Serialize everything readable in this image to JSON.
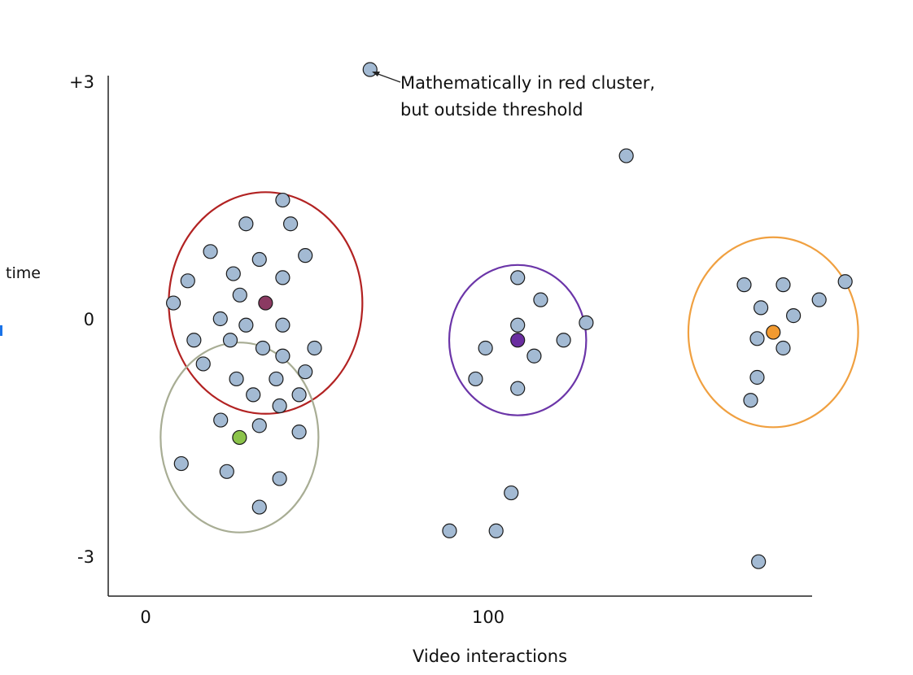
{
  "chart_data": {
    "type": "scatter",
    "title": "",
    "xlabel": "Video interactions",
    "ylabel": "time",
    "xlim": [
      -11,
      196
    ],
    "ylim": [
      -3.5,
      3.05
    ],
    "x_ticks": [
      {
        "value": 0,
        "label": "0"
      },
      {
        "value": 100,
        "label": "100"
      }
    ],
    "y_ticks": [
      {
        "value": 3,
        "label": "+3"
      },
      {
        "value": 0,
        "label": "0"
      },
      {
        "value": -3,
        "label": "-3"
      }
    ],
    "grid": false,
    "point_color": "#a3bad3",
    "points": [
      [
        65.5,
        3.15
      ],
      [
        140.3,
        2.06
      ],
      [
        40.0,
        1.5
      ],
      [
        29.3,
        1.2
      ],
      [
        42.3,
        1.2
      ],
      [
        18.9,
        0.85
      ],
      [
        46.6,
        0.8
      ],
      [
        33.2,
        0.75
      ],
      [
        25.6,
        0.57
      ],
      [
        12.3,
        0.48
      ],
      [
        40.0,
        0.52
      ],
      [
        27.5,
        0.3
      ],
      [
        8.1,
        0.2
      ],
      [
        21.8,
        0.0
      ],
      [
        29.3,
        -0.08
      ],
      [
        40.0,
        -0.08
      ],
      [
        14.1,
        -0.27
      ],
      [
        24.7,
        -0.27
      ],
      [
        34.2,
        -0.37
      ],
      [
        49.3,
        -0.37
      ],
      [
        40.0,
        -0.47
      ],
      [
        16.8,
        -0.57
      ],
      [
        46.6,
        -0.67
      ],
      [
        26.5,
        -0.76
      ],
      [
        38.1,
        -0.76
      ],
      [
        31.4,
        -0.96
      ],
      [
        44.8,
        -0.96
      ],
      [
        39.1,
        -1.1
      ],
      [
        21.9,
        -1.28
      ],
      [
        33.2,
        -1.35
      ],
      [
        44.8,
        -1.43
      ],
      [
        10.4,
        -1.83
      ],
      [
        23.7,
        -1.93
      ],
      [
        39.1,
        -2.02
      ],
      [
        33.2,
        -2.38
      ],
      [
        108.6,
        0.52
      ],
      [
        115.3,
        0.24
      ],
      [
        128.6,
        -0.05
      ],
      [
        108.6,
        -0.08
      ],
      [
        99.2,
        -0.37
      ],
      [
        113.4,
        -0.47
      ],
      [
        122.0,
        -0.27
      ],
      [
        96.3,
        -0.76
      ],
      [
        108.6,
        -0.88
      ],
      [
        106.7,
        -2.2
      ],
      [
        88.7,
        -2.68
      ],
      [
        102.3,
        -2.68
      ],
      [
        174.7,
        0.43
      ],
      [
        186.1,
        0.43
      ],
      [
        204.2,
        0.47
      ],
      [
        196.6,
        0.24
      ],
      [
        179.6,
        0.14
      ],
      [
        189.1,
        0.04
      ],
      [
        178.5,
        -0.25
      ],
      [
        186.1,
        -0.37
      ],
      [
        178.5,
        -0.74
      ],
      [
        176.6,
        -1.03
      ],
      [
        178.9,
        -3.07
      ]
    ],
    "clusters": [
      {
        "color": "#b22222",
        "center_color": "#8b3a62",
        "center": [
          35.0,
          0.2
        ],
        "radius_x": 65,
        "radius_y": 1.4
      },
      {
        "color": "#a8ad94",
        "center_color": "#8bc34a",
        "center": [
          27.4,
          -1.5
        ],
        "radius_x": 53,
        "radius_y": 1.2
      },
      {
        "color": "#6b35a8",
        "center_color": "#6a2ea0",
        "center": [
          108.6,
          -0.27
        ],
        "radius_x": 46,
        "radius_y": 0.95
      },
      {
        "color": "#f0a040",
        "center_color": "#f29a30",
        "center": [
          183.2,
          -0.17
        ],
        "radius_x": 57,
        "radius_y": 1.2
      }
    ],
    "annotations": [
      {
        "text_lines": [
          "Mathematically in red cluster,",
          "but outside threshold"
        ],
        "points_to": [
          65.5,
          3.15
        ]
      }
    ]
  }
}
